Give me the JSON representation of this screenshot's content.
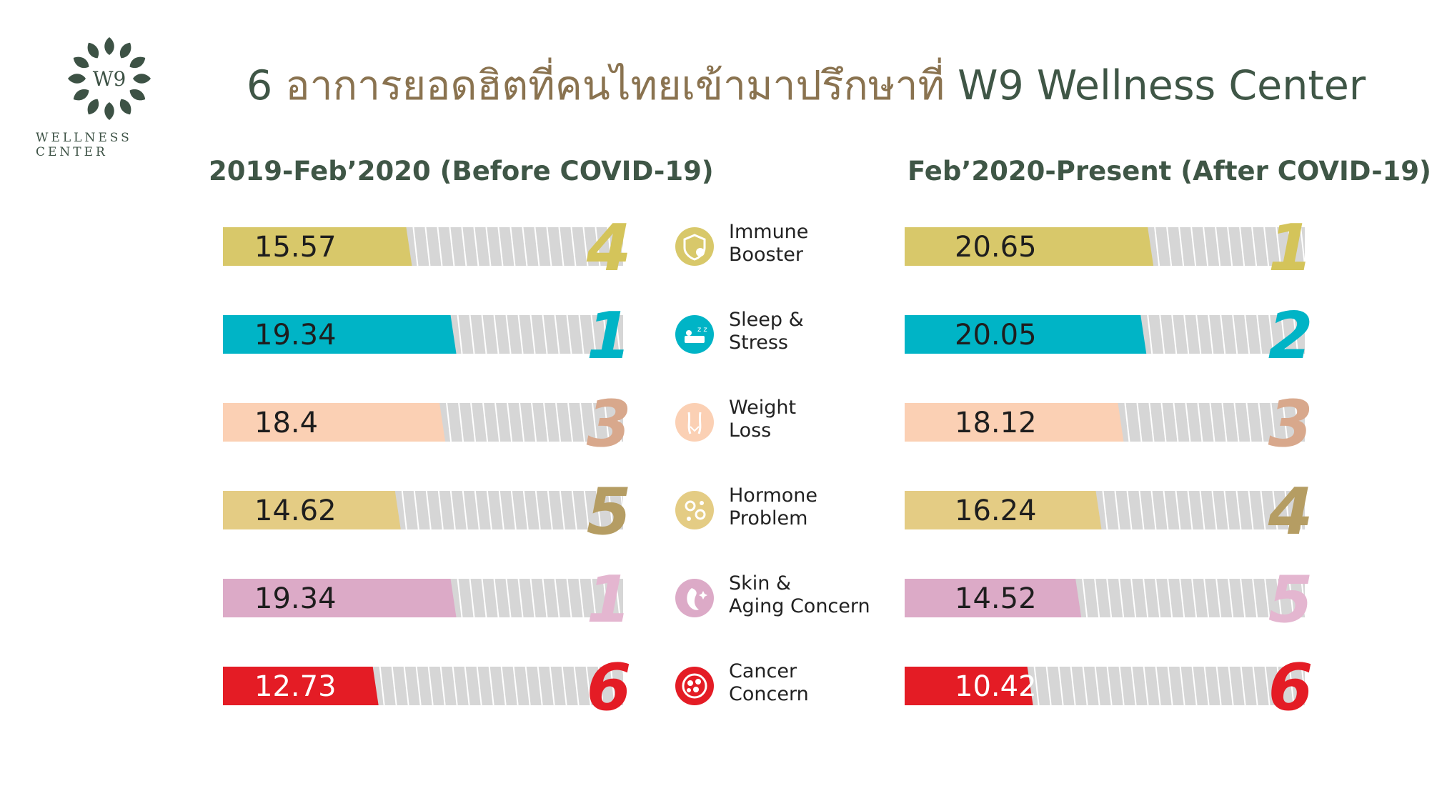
{
  "logo": {
    "monogram": "W9",
    "name": "WELLNESS CENTER"
  },
  "title": {
    "prefix": "6 ",
    "thai": "อาการยอดฮิตที่คนไทยเข้ามาปรึกษาที่",
    "suffix": " W9 Wellness Center"
  },
  "colors": {
    "track": "#d6d6d6",
    "stripe": "#ffffff",
    "immune": "#d8c86a",
    "sleep": "#00b4c6",
    "weight": "#fbd0b4",
    "hormone": "#e4cc84",
    "skin": "#dcaac7",
    "cancer": "#e41c25",
    "rank_immune": "#d4c45a",
    "rank_sleep": "#00b4c6",
    "rank_weight": "#d8a88c",
    "rank_hormone": "#b59d63",
    "rank_skin": "#e4b6d0",
    "rank_cancer": "#e41c25"
  },
  "chart_data": {
    "type": "bar",
    "title": "6 อาการยอดฮิตที่คนไทยเข้ามาปรึกษาที่ W9 Wellness Center",
    "categories": [
      {
        "key": "immune",
        "line1": "Immune",
        "line2": "Booster",
        "icon": "shield-virus-icon"
      },
      {
        "key": "sleep",
        "line1": "Sleep &",
        "line2": "Stress",
        "icon": "bed-sleep-icon"
      },
      {
        "key": "weight",
        "line1": "Weight",
        "line2": "Loss",
        "icon": "body-waist-icon"
      },
      {
        "key": "hormone",
        "line1": "Hormone",
        "line2": "Problem",
        "icon": "hormone-molecule-icon"
      },
      {
        "key": "skin",
        "line1": "Skin &",
        "line2": "Aging Concern",
        "icon": "face-sparkle-icon"
      },
      {
        "key": "cancer",
        "line1": "Cancer",
        "line2": "Concern",
        "icon": "cancer-cell-icon"
      }
    ],
    "series": [
      {
        "name": "2019-Feb’2020 (Before COVID-19)",
        "values": [
          "15.57",
          "19.34",
          "18.4",
          "14.62",
          "19.34",
          "12.73"
        ],
        "ranks": [
          "4",
          "1",
          "3",
          "5",
          "1",
          "6"
        ]
      },
      {
        "name": "Feb’2020-Present (After COVID-19)",
        "values": [
          "20.65",
          "20.05",
          "18.12",
          "16.24",
          "14.52",
          "10.42"
        ],
        "ranks": [
          "1",
          "2",
          "3",
          "4",
          "5",
          "6"
        ]
      }
    ],
    "xlim": [
      0,
      34
    ]
  }
}
